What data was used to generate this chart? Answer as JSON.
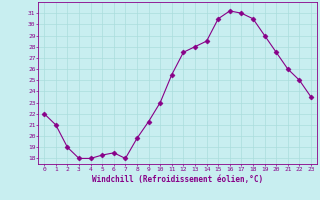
{
  "x": [
    0,
    1,
    2,
    3,
    4,
    5,
    6,
    7,
    8,
    9,
    10,
    11,
    12,
    13,
    14,
    15,
    16,
    17,
    18,
    19,
    20,
    21,
    22,
    23
  ],
  "y": [
    22.0,
    21.0,
    19.0,
    18.0,
    18.0,
    18.3,
    18.5,
    18.0,
    19.8,
    21.3,
    23.0,
    25.5,
    27.5,
    28.0,
    28.5,
    30.5,
    31.2,
    31.0,
    30.5,
    29.0,
    27.5,
    26.0,
    25.0,
    23.5
  ],
  "line_color": "#880088",
  "marker": "D",
  "marker_size": 2.5,
  "bg_color": "#c8eef0",
  "grid_color": "#aadddd",
  "xlabel": "Windchill (Refroidissement éolien,°C)",
  "xlabel_color": "#880088",
  "xlim": [
    -0.5,
    23.5
  ],
  "ylim": [
    17.5,
    32.0
  ],
  "yticks": [
    18,
    19,
    20,
    21,
    22,
    23,
    24,
    25,
    26,
    27,
    28,
    29,
    30,
    31
  ],
  "xticks": [
    0,
    1,
    2,
    3,
    4,
    5,
    6,
    7,
    8,
    9,
    10,
    11,
    12,
    13,
    14,
    15,
    16,
    17,
    18,
    19,
    20,
    21,
    22,
    23
  ],
  "tick_color": "#880088",
  "spine_color": "#880088"
}
